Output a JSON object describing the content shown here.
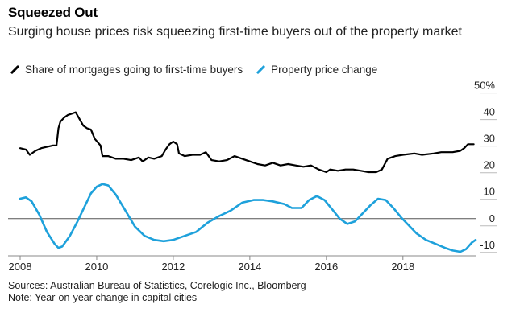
{
  "header": {
    "title": "Squeezed Out",
    "subtitle": "Surging house prices risk squeezing first-time buyers out of the property market"
  },
  "legend": {
    "items": [
      {
        "label": "Share of mortgages going to first-time buyers",
        "color": "#000000"
      },
      {
        "label": "Property price change",
        "color": "#1ea1db"
      }
    ]
  },
  "footer": {
    "sources": "Sources: Australian Bureau of Statistics, Corelogic Inc., Bloomberg",
    "note": "Note: Year-on-year change in capital cities"
  },
  "chart_data": {
    "type": "line",
    "title": "Squeezed Out",
    "y_axis": {
      "side": "right",
      "range": [
        -14,
        52
      ],
      "ticks": [
        -10,
        0,
        10,
        20,
        30,
        40,
        50
      ],
      "tick_labels": [
        "-10",
        "0",
        "10",
        "20",
        "30",
        "40",
        "50%"
      ],
      "zero_line": true
    },
    "x_axis": {
      "range": [
        2008,
        2019.9
      ],
      "ticks": [
        2008,
        2010,
        2012,
        2014,
        2016,
        2018
      ],
      "tick_labels": [
        "2008",
        "2010",
        "2012",
        "2014",
        "2016",
        "2018"
      ]
    },
    "series": [
      {
        "name": "Share of mortgages going to first-time buyers",
        "color": "#000000",
        "points": [
          [
            2008.0,
            26.5
          ],
          [
            2008.15,
            26.0
          ],
          [
            2008.25,
            24.0
          ],
          [
            2008.4,
            25.5
          ],
          [
            2008.55,
            26.5
          ],
          [
            2008.7,
            27.0
          ],
          [
            2008.85,
            27.5
          ],
          [
            2008.95,
            27.5
          ],
          [
            2009.0,
            34.0
          ],
          [
            2009.05,
            36.5
          ],
          [
            2009.15,
            38.0
          ],
          [
            2009.25,
            39.0
          ],
          [
            2009.35,
            39.5
          ],
          [
            2009.45,
            40.0
          ],
          [
            2009.55,
            37.5
          ],
          [
            2009.65,
            35.0
          ],
          [
            2009.75,
            34.0
          ],
          [
            2009.85,
            33.5
          ],
          [
            2009.95,
            30.0
          ],
          [
            2010.1,
            27.5
          ],
          [
            2010.15,
            23.5
          ],
          [
            2010.3,
            23.5
          ],
          [
            2010.5,
            22.5
          ],
          [
            2010.7,
            22.5
          ],
          [
            2010.9,
            22.0
          ],
          [
            2011.1,
            23.0
          ],
          [
            2011.2,
            21.5
          ],
          [
            2011.35,
            23.0
          ],
          [
            2011.5,
            22.5
          ],
          [
            2011.7,
            23.5
          ],
          [
            2011.8,
            26.0
          ],
          [
            2011.9,
            28.0
          ],
          [
            2012.0,
            29.0
          ],
          [
            2012.1,
            28.0
          ],
          [
            2012.15,
            24.5
          ],
          [
            2012.3,
            23.5
          ],
          [
            2012.5,
            24.0
          ],
          [
            2012.7,
            24.0
          ],
          [
            2012.85,
            25.0
          ],
          [
            2013.0,
            22.0
          ],
          [
            2013.2,
            21.5
          ],
          [
            2013.4,
            22.0
          ],
          [
            2013.6,
            23.5
          ],
          [
            2013.8,
            22.5
          ],
          [
            2014.0,
            21.5
          ],
          [
            2014.2,
            20.5
          ],
          [
            2014.4,
            20.0
          ],
          [
            2014.6,
            21.0
          ],
          [
            2014.8,
            20.0
          ],
          [
            2015.0,
            20.5
          ],
          [
            2015.2,
            20.0
          ],
          [
            2015.4,
            19.5
          ],
          [
            2015.6,
            20.0
          ],
          [
            2015.8,
            18.5
          ],
          [
            2016.0,
            17.5
          ],
          [
            2016.1,
            18.5
          ],
          [
            2016.3,
            18.0
          ],
          [
            2016.5,
            18.5
          ],
          [
            2016.7,
            18.5
          ],
          [
            2016.9,
            18.0
          ],
          [
            2017.1,
            17.5
          ],
          [
            2017.3,
            17.5
          ],
          [
            2017.45,
            18.5
          ],
          [
            2017.6,
            22.5
          ],
          [
            2017.8,
            23.5
          ],
          [
            2018.0,
            24.0
          ],
          [
            2018.3,
            24.5
          ],
          [
            2018.5,
            24.0
          ],
          [
            2018.8,
            24.5
          ],
          [
            2019.0,
            25.0
          ],
          [
            2019.3,
            25.0
          ],
          [
            2019.5,
            25.5
          ],
          [
            2019.6,
            26.5
          ],
          [
            2019.7,
            28.0
          ],
          [
            2019.85,
            28.0
          ]
        ]
      },
      {
        "name": "Property price change",
        "color": "#1ea1db",
        "points": [
          [
            2008.0,
            7.5
          ],
          [
            2008.15,
            8.0
          ],
          [
            2008.3,
            6.5
          ],
          [
            2008.5,
            1.5
          ],
          [
            2008.7,
            -5.0
          ],
          [
            2008.9,
            -9.5
          ],
          [
            2009.0,
            -11.0
          ],
          [
            2009.1,
            -10.5
          ],
          [
            2009.3,
            -6.5
          ],
          [
            2009.5,
            -1.0
          ],
          [
            2009.7,
            5.0
          ],
          [
            2009.85,
            9.5
          ],
          [
            2010.0,
            12.0
          ],
          [
            2010.15,
            13.0
          ],
          [
            2010.3,
            12.5
          ],
          [
            2010.5,
            9.0
          ],
          [
            2010.75,
            3.0
          ],
          [
            2011.0,
            -3.0
          ],
          [
            2011.25,
            -6.5
          ],
          [
            2011.5,
            -8.0
          ],
          [
            2011.75,
            -8.5
          ],
          [
            2012.0,
            -8.0
          ],
          [
            2012.3,
            -6.5
          ],
          [
            2012.6,
            -5.0
          ],
          [
            2012.9,
            -1.5
          ],
          [
            2013.2,
            1.0
          ],
          [
            2013.5,
            3.0
          ],
          [
            2013.8,
            6.0
          ],
          [
            2014.1,
            7.0
          ],
          [
            2014.35,
            7.0
          ],
          [
            2014.6,
            6.5
          ],
          [
            2014.9,
            5.5
          ],
          [
            2015.1,
            4.0
          ],
          [
            2015.35,
            4.0
          ],
          [
            2015.55,
            7.0
          ],
          [
            2015.75,
            8.5
          ],
          [
            2015.95,
            7.0
          ],
          [
            2016.15,
            3.5
          ],
          [
            2016.35,
            0.0
          ],
          [
            2016.55,
            -2.0
          ],
          [
            2016.75,
            -1.0
          ],
          [
            2016.95,
            2.0
          ],
          [
            2017.15,
            5.0
          ],
          [
            2017.35,
            7.5
          ],
          [
            2017.55,
            7.0
          ],
          [
            2017.75,
            4.0
          ],
          [
            2017.95,
            0.5
          ],
          [
            2018.15,
            -2.5
          ],
          [
            2018.35,
            -5.5
          ],
          [
            2018.6,
            -8.0
          ],
          [
            2018.85,
            -9.5
          ],
          [
            2019.1,
            -11.0
          ],
          [
            2019.3,
            -12.0
          ],
          [
            2019.5,
            -12.5
          ],
          [
            2019.65,
            -11.5
          ],
          [
            2019.8,
            -9.0
          ],
          [
            2019.9,
            -8.0
          ]
        ]
      }
    ]
  }
}
